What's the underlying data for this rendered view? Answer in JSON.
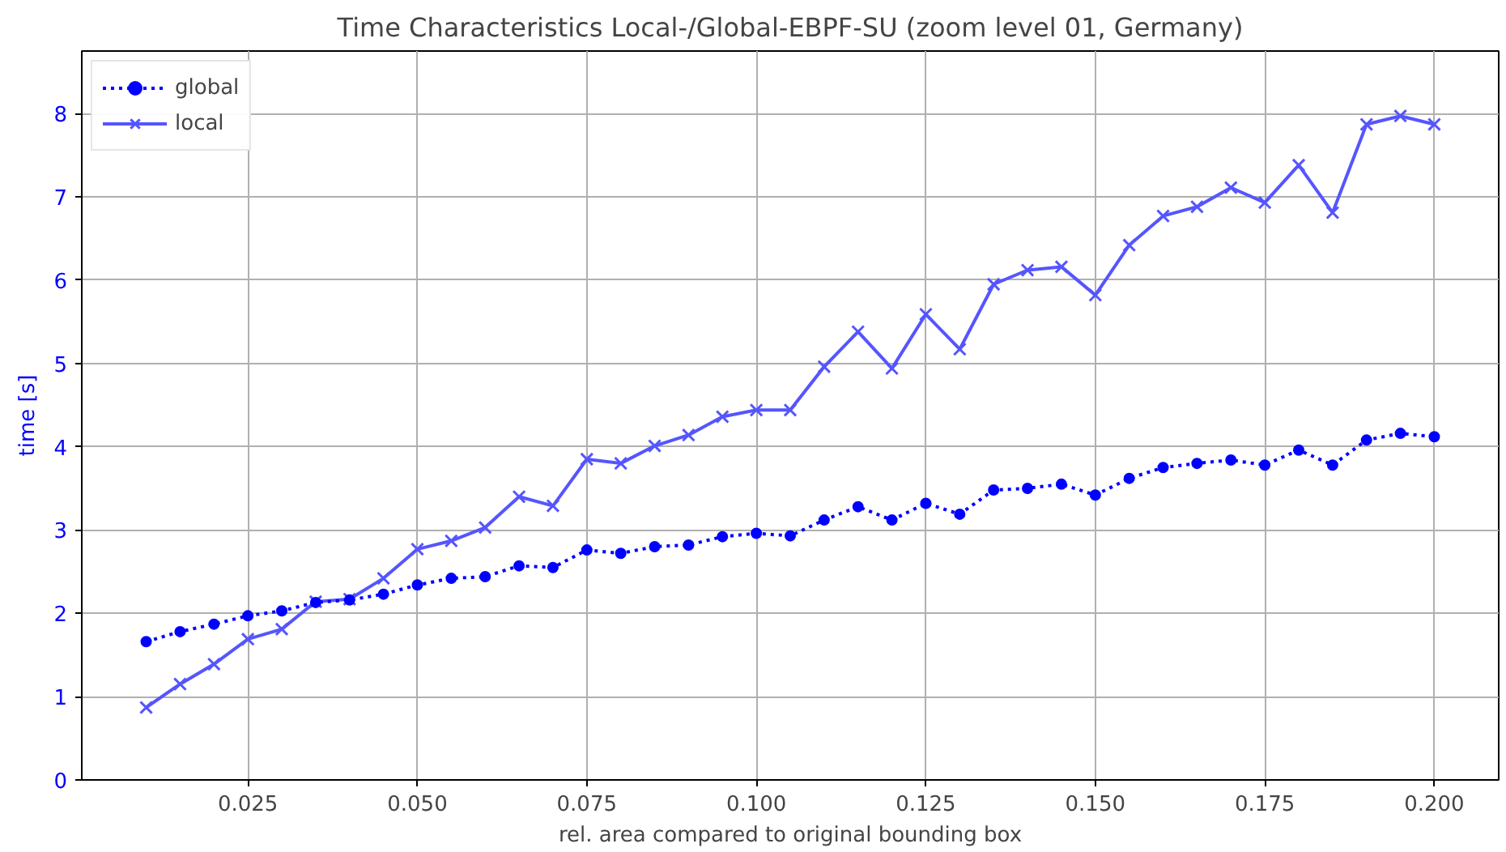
{
  "chart_data": {
    "type": "line",
    "title": "Time Characteristics Local-/Global-EBPF-SU (zoom level 01, Germany)",
    "xlabel": "rel. area compared to original bounding box",
    "ylabel": "time [s]",
    "x": [
      0.01,
      0.015,
      0.02,
      0.025,
      0.03,
      0.035,
      0.04,
      0.045,
      0.05,
      0.055,
      0.06,
      0.065,
      0.07,
      0.075,
      0.08,
      0.085,
      0.09,
      0.095,
      0.1,
      0.105,
      0.11,
      0.115,
      0.12,
      0.125,
      0.13,
      0.135,
      0.14,
      0.145,
      0.15,
      0.155,
      0.16,
      0.165,
      0.17,
      0.175,
      0.18,
      0.185,
      0.19,
      0.195,
      0.2
    ],
    "series": [
      {
        "name": "global",
        "color": "#0000ff",
        "marker": "circle",
        "line_style": "dotted",
        "values": [
          1.66,
          1.78,
          1.87,
          1.97,
          2.03,
          2.13,
          2.16,
          2.23,
          2.34,
          2.42,
          2.44,
          2.57,
          2.55,
          2.76,
          2.72,
          2.8,
          2.82,
          2.92,
          2.96,
          2.93,
          3.12,
          3.28,
          3.12,
          3.32,
          3.19,
          3.48,
          3.5,
          3.55,
          3.42,
          3.62,
          3.75,
          3.8,
          3.84,
          3.78,
          3.96,
          3.78,
          4.08,
          4.16,
          4.12
        ]
      },
      {
        "name": "local",
        "color": "#5555ff",
        "marker": "cross",
        "line_style": "solid",
        "values": [
          0.87,
          1.15,
          1.39,
          1.69,
          1.81,
          2.14,
          2.17,
          2.42,
          2.77,
          2.87,
          3.03,
          3.4,
          3.29,
          3.85,
          3.8,
          4.01,
          4.14,
          4.36,
          4.44,
          4.44,
          4.96,
          5.38,
          4.94,
          5.59,
          5.17,
          5.95,
          6.12,
          6.16,
          5.82,
          6.42,
          6.77,
          6.88,
          7.11,
          6.93,
          7.38,
          6.81,
          7.87,
          7.97,
          7.87
        ]
      }
    ],
    "xlim": [
      0.0005,
      0.2095
    ],
    "ylim": [
      0,
      8.75
    ],
    "xticks": [
      {
        "value": 0.025,
        "label": "0.025"
      },
      {
        "value": 0.05,
        "label": "0.050"
      },
      {
        "value": 0.075,
        "label": "0.075"
      },
      {
        "value": 0.1,
        "label": "0.100"
      },
      {
        "value": 0.125,
        "label": "0.125"
      },
      {
        "value": 0.15,
        "label": "0.150"
      },
      {
        "value": 0.175,
        "label": "0.175"
      },
      {
        "value": 0.2,
        "label": "0.200"
      }
    ],
    "yticks": [
      0,
      1,
      2,
      3,
      4,
      5,
      6,
      7,
      8
    ],
    "grid": true,
    "legend": "top left"
  }
}
